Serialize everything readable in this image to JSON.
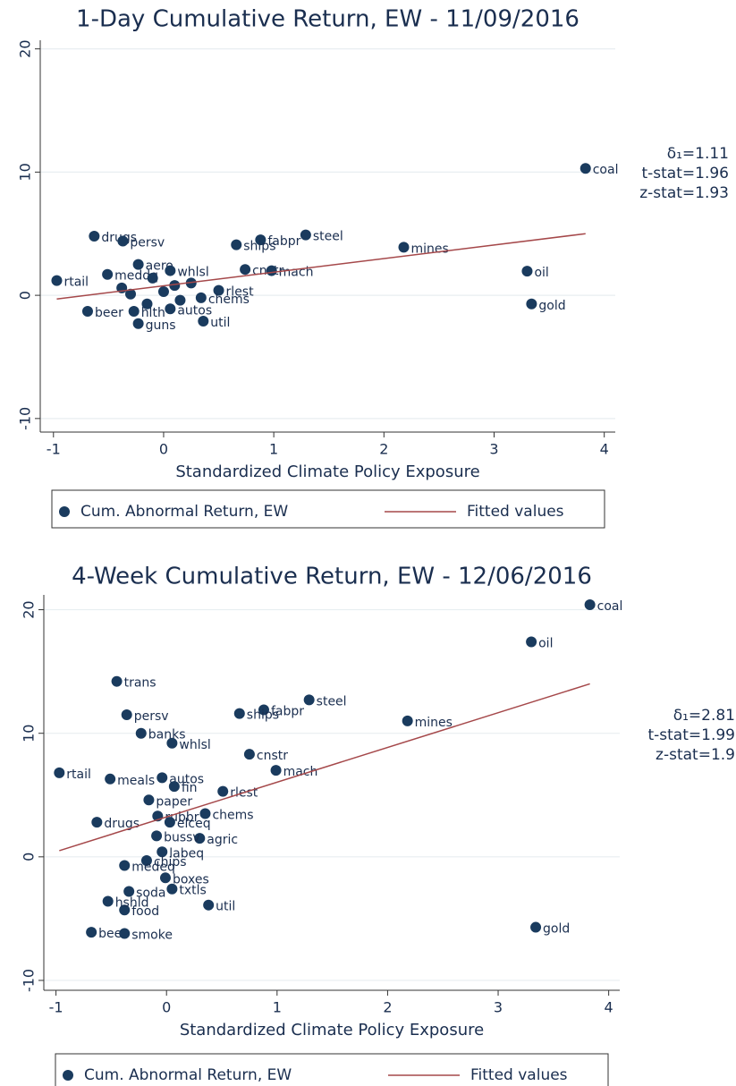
{
  "chart_data": [
    {
      "type": "scatter",
      "title": "1-Day Cumulative Return, EW - 11/09/2016",
      "xlabel": "Standardized Climate Policy Exposure",
      "xlim": [
        -1.12,
        4.1
      ],
      "ylim": [
        -11.1,
        20.7
      ],
      "xticks": [
        -1,
        0,
        1,
        2,
        3,
        4
      ],
      "yticks": [
        -10,
        0,
        10,
        20
      ],
      "grid": true,
      "annotations": [
        "δ₁=1.11",
        "t-stat=1.96",
        "z-stat=1.93"
      ],
      "series": [
        {
          "name": "Cum. Abnormal Return, EW",
          "style": "markers",
          "color": "#1a3b5e",
          "labels": [
            "coal",
            "oil",
            "gold",
            "mines",
            "steel",
            "fabpr",
            "ships",
            "cnstr",
            "mach",
            "drugs",
            "persv",
            "rtail",
            "aero",
            "meddq",
            "whlsl",
            "rlest",
            "chems",
            "util",
            "guns",
            "beer",
            "hlth",
            "autos",
            null,
            null,
            null,
            null,
            null,
            null,
            null,
            null
          ],
          "x": [
            3.83,
            3.3,
            3.34,
            2.18,
            1.29,
            0.88,
            0.66,
            0.74,
            0.98,
            -0.63,
            -0.37,
            -0.97,
            -0.23,
            -0.51,
            0.06,
            0.5,
            0.34,
            0.36,
            -0.23,
            -0.69,
            -0.27,
            0.06,
            -0.38,
            -0.3,
            -0.1,
            0.0,
            0.15,
            0.25,
            -0.15,
            0.1
          ],
          "y": [
            10.3,
            1.96,
            -0.7,
            3.9,
            4.9,
            4.5,
            4.1,
            2.1,
            2.0,
            4.8,
            4.4,
            1.2,
            2.5,
            1.7,
            2.0,
            0.4,
            -0.2,
            -2.1,
            -2.3,
            -1.3,
            -1.3,
            -1.1,
            0.6,
            0.1,
            1.4,
            0.3,
            -0.4,
            1.0,
            -0.7,
            0.8
          ]
        },
        {
          "name": "Fitted values",
          "style": "line",
          "color": "#a5484a",
          "x": [
            -0.97,
            3.83
          ],
          "y": [
            -0.3,
            5.0
          ]
        }
      ]
    },
    {
      "type": "scatter",
      "title": "4-Week Cumulative Return, EW - 12/06/2016",
      "xlabel": "Standardized Climate Policy Exposure",
      "xlim": [
        -1.11,
        4.1
      ],
      "ylim": [
        -10.8,
        21.2
      ],
      "xticks": [
        -1,
        0,
        1,
        2,
        3,
        4
      ],
      "yticks": [
        -10,
        0,
        10,
        20
      ],
      "grid": true,
      "annotations": [
        "δ₁=2.81",
        "t-stat=1.99",
        "z-stat=1.9"
      ],
      "series": [
        {
          "name": "Cum. Abnormal Return, EW",
          "style": "markers",
          "color": "#1a3b5e",
          "labels": [
            "coal",
            "oil",
            "gold",
            "mines",
            "steel",
            "fabpr",
            "ships",
            "cnstr",
            "mach",
            "trans",
            "persv",
            "banks",
            "whlsl",
            "rtail",
            "meals",
            "autos",
            "paper",
            "rlest",
            "chems",
            "agric",
            "util",
            "food",
            "hshld",
            "beer",
            "smoke",
            "boxes",
            "txtls",
            "drugs",
            "rubbr",
            "elceq",
            "bussv",
            "labeq",
            "chips",
            "medeq",
            "soda",
            "fin"
          ],
          "x": [
            3.83,
            3.3,
            3.34,
            2.18,
            1.29,
            0.88,
            0.66,
            0.75,
            0.99,
            -0.45,
            -0.36,
            -0.23,
            0.05,
            -0.97,
            -0.51,
            -0.04,
            -0.16,
            0.51,
            0.35,
            0.3,
            0.38,
            -0.38,
            -0.53,
            -0.68,
            -0.38,
            -0.01,
            0.05,
            -0.63,
            -0.08,
            0.03,
            -0.09,
            -0.04,
            -0.18,
            -0.38,
            -0.34,
            0.07
          ],
          "y": [
            20.4,
            17.4,
            -5.7,
            11.0,
            12.7,
            11.9,
            11.6,
            8.3,
            7.0,
            14.2,
            11.5,
            10.0,
            9.2,
            6.8,
            6.3,
            6.4,
            4.6,
            5.3,
            3.5,
            1.5,
            -3.9,
            -4.3,
            -3.6,
            -6.1,
            -6.2,
            -1.7,
            -2.6,
            2.8,
            3.3,
            2.8,
            1.7,
            0.4,
            -0.3,
            -0.7,
            -2.8,
            5.7
          ]
        },
        {
          "name": "Fitted values",
          "style": "line",
          "color": "#a5484a",
          "x": [
            -0.97,
            3.83
          ],
          "y": [
            0.5,
            14.0
          ]
        }
      ]
    }
  ]
}
